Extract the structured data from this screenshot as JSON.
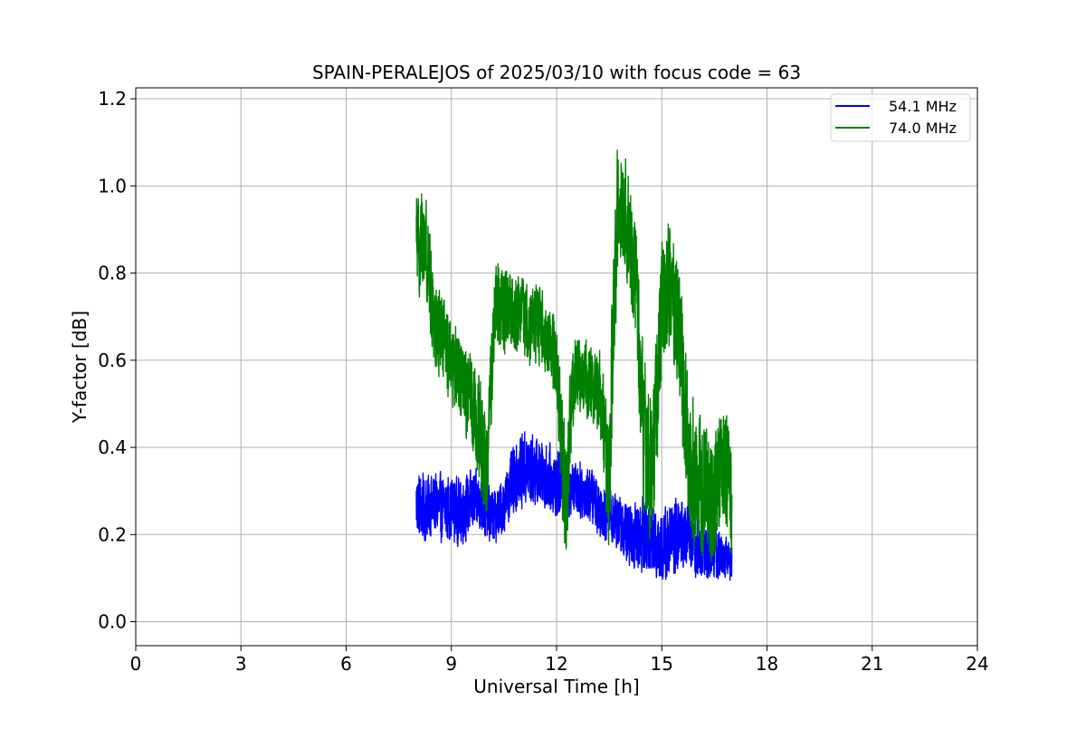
{
  "chart_data": {
    "type": "line",
    "title": "SPAIN-PERALEJOS of 2025/03/10 with focus code = 63",
    "xlabel": "Universal Time [h]",
    "ylabel": "Y-factor [dB]",
    "xlim": [
      0,
      24
    ],
    "ylim": [
      -0.055,
      1.225
    ],
    "xticks": [
      0,
      3,
      6,
      9,
      12,
      15,
      18,
      21,
      24
    ],
    "xtick_labels": [
      "0",
      "3",
      "6",
      "9",
      "12",
      "15",
      "18",
      "21",
      "24"
    ],
    "yticks": [
      0.0,
      0.2,
      0.4,
      0.6,
      0.8,
      1.0,
      1.2
    ],
    "ytick_labels": [
      "0.0",
      "0.2",
      "0.4",
      "0.6",
      "0.8",
      "1.0",
      "1.2"
    ],
    "grid": true,
    "legend_position": "top-right",
    "series": [
      {
        "name": "54.1 MHz",
        "color": "#0000ff",
        "x": [
          8.0,
          8.25,
          8.5,
          8.75,
          9.0,
          9.25,
          9.5,
          9.75,
          10.0,
          10.25,
          10.5,
          10.75,
          11.0,
          11.25,
          11.5,
          11.75,
          12.0,
          12.25,
          12.5,
          12.75,
          13.0,
          13.25,
          13.5,
          13.75,
          14.0,
          14.25,
          14.5,
          14.75,
          15.0,
          15.25,
          15.5,
          15.75,
          16.0,
          16.25,
          16.5,
          16.75,
          17.0
        ],
        "y": [
          0.27,
          0.26,
          0.27,
          0.26,
          0.26,
          0.25,
          0.27,
          0.28,
          0.25,
          0.24,
          0.27,
          0.32,
          0.35,
          0.35,
          0.34,
          0.33,
          0.32,
          0.31,
          0.31,
          0.3,
          0.29,
          0.26,
          0.25,
          0.23,
          0.2,
          0.2,
          0.2,
          0.19,
          0.17,
          0.19,
          0.2,
          0.2,
          0.17,
          0.16,
          0.16,
          0.15,
          0.14
        ],
        "spread": [
          0.07,
          0.07,
          0.07,
          0.07,
          0.07,
          0.07,
          0.07,
          0.06,
          0.06,
          0.06,
          0.06,
          0.07,
          0.08,
          0.08,
          0.07,
          0.07,
          0.07,
          0.07,
          0.06,
          0.06,
          0.06,
          0.06,
          0.06,
          0.06,
          0.07,
          0.07,
          0.08,
          0.08,
          0.08,
          0.08,
          0.08,
          0.07,
          0.07,
          0.06,
          0.06,
          0.05,
          0.04
        ]
      },
      {
        "name": "74.0 MHz",
        "color": "#008000",
        "x": [
          8.0,
          8.25,
          8.5,
          8.75,
          9.0,
          9.25,
          9.5,
          9.75,
          10.0,
          10.25,
          10.5,
          10.75,
          11.0,
          11.25,
          11.5,
          11.75,
          12.0,
          12.25,
          12.5,
          12.75,
          13.0,
          13.25,
          13.5,
          13.75,
          14.0,
          14.25,
          14.5,
          14.75,
          15.0,
          15.25,
          15.5,
          15.75,
          16.0,
          16.25,
          16.5,
          16.75,
          17.0
        ],
        "y": [
          0.86,
          0.88,
          0.7,
          0.64,
          0.6,
          0.56,
          0.52,
          0.46,
          0.33,
          0.74,
          0.72,
          0.7,
          0.71,
          0.69,
          0.68,
          0.65,
          0.6,
          0.25,
          0.58,
          0.56,
          0.55,
          0.52,
          0.35,
          0.98,
          0.92,
          0.78,
          0.42,
          0.36,
          0.74,
          0.78,
          0.65,
          0.38,
          0.32,
          0.31,
          0.28,
          0.38,
          0.28
        ],
        "spread": [
          0.12,
          0.1,
          0.1,
          0.1,
          0.09,
          0.09,
          0.1,
          0.12,
          0.12,
          0.09,
          0.09,
          0.08,
          0.08,
          0.09,
          0.08,
          0.08,
          0.08,
          0.16,
          0.09,
          0.08,
          0.09,
          0.09,
          0.18,
          0.13,
          0.12,
          0.13,
          0.18,
          0.17,
          0.14,
          0.13,
          0.15,
          0.16,
          0.15,
          0.14,
          0.13,
          0.12,
          0.12
        ]
      }
    ]
  }
}
